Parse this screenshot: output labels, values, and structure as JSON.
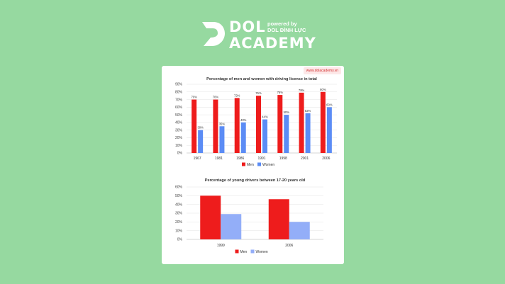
{
  "header": {
    "brand_top": "DOL",
    "brand_bottom": "ACADEMY",
    "tagline_1": "powered by",
    "tagline_2": "DOL ĐÌNH LỰC"
  },
  "card": {
    "url": "www.dolacademy.vn"
  },
  "colors": {
    "men": "#ee1c1c",
    "women": "#5b8cf5",
    "women_light": "#93aef8",
    "background": "#96d9a0"
  },
  "chart_data": [
    {
      "type": "bar",
      "title": "Percentage of men and women with driving license in total",
      "categories": [
        "1967",
        "1981",
        "1986",
        "1991",
        "1998",
        "2001",
        "2006"
      ],
      "series": [
        {
          "name": "Men",
          "values": [
            70,
            70,
            72,
            75,
            76,
            79,
            80
          ]
        },
        {
          "name": "Women",
          "values": [
            30,
            35,
            40,
            44,
            50,
            52,
            60
          ]
        }
      ],
      "data_labels": {
        "Men": [
          "70%",
          "70%",
          "72%",
          "75%",
          "76%",
          "79%",
          "80%"
        ],
        "Women": [
          "30%",
          "35%",
          "40%",
          "44%",
          "50%",
          "52%",
          "60%"
        ]
      },
      "y_ticks": [
        "0%",
        "10%",
        "20%",
        "30%",
        "40%",
        "50%",
        "60%",
        "70%",
        "80%",
        "90%"
      ],
      "ylim": [
        0,
        90
      ],
      "grid": true,
      "legend": "bottom"
    },
    {
      "type": "bar",
      "title": "Percentage of young drivers between 17-20 years old",
      "categories": [
        "1999",
        "2006"
      ],
      "series": [
        {
          "name": "Men",
          "values": [
            50,
            46
          ]
        },
        {
          "name": "Women",
          "values": [
            29,
            20
          ]
        }
      ],
      "y_ticks": [
        "0%",
        "10%",
        "20%",
        "30%",
        "40%",
        "50%",
        "60%"
      ],
      "ylim": [
        0,
        60
      ],
      "grid": true,
      "legend": "bottom"
    }
  ]
}
